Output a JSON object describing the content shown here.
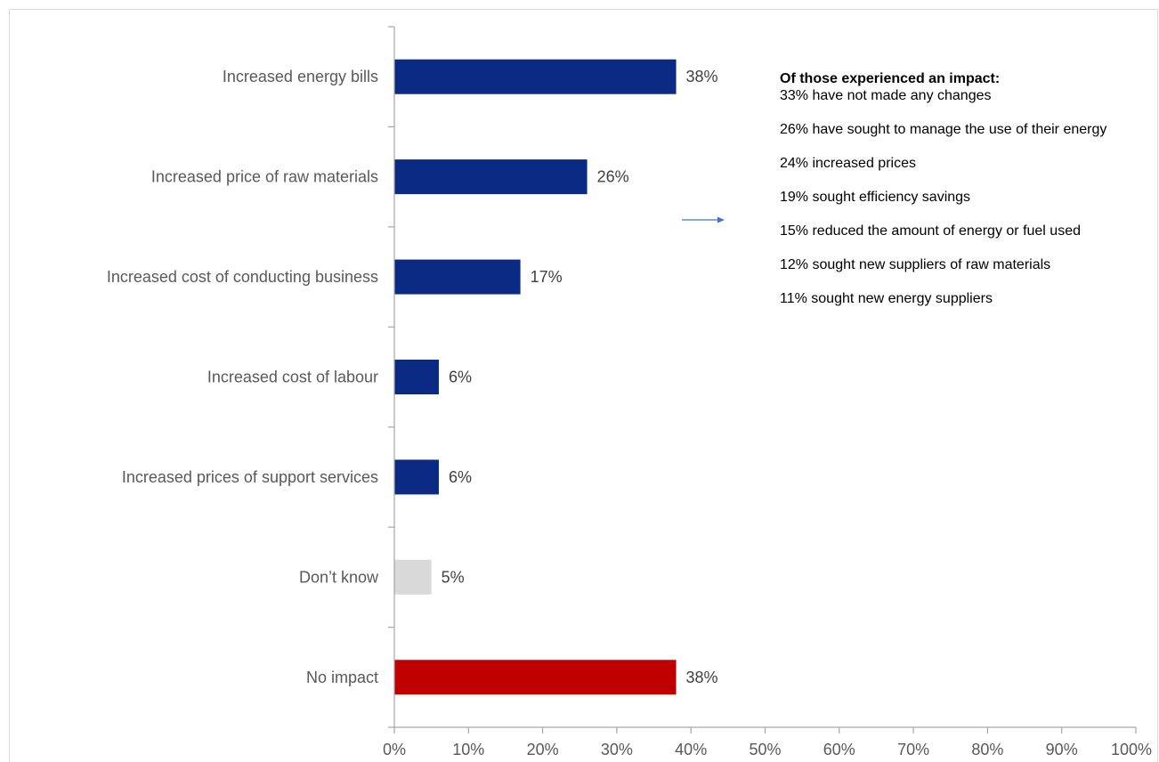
{
  "chart_data": {
    "type": "bar",
    "orientation": "horizontal",
    "categories": [
      "Increased energy bills",
      "Increased price of raw materials",
      "Increased cost of conducting business",
      "Increased cost of labour",
      "Increased prices of support services",
      "Don’t know",
      "No impact"
    ],
    "values": [
      38,
      26,
      17,
      6,
      6,
      5,
      38
    ],
    "value_labels": [
      "38%",
      "26%",
      "17%",
      "6%",
      "6%",
      "5%",
      "38%"
    ],
    "bar_colors": [
      "#0a2a84",
      "#0a2a84",
      "#0a2a84",
      "#0a2a84",
      "#0a2a84",
      "#d9d9d9",
      "#c00000"
    ],
    "xlim": [
      0,
      100
    ],
    "xticks": [
      0,
      10,
      20,
      30,
      40,
      50,
      60,
      70,
      80,
      90,
      100
    ],
    "xtick_labels": [
      "0%",
      "10%",
      "20%",
      "30%",
      "40%",
      "50%",
      "60%",
      "70%",
      "80%",
      "90%",
      "100%"
    ],
    "grid": false,
    "legend": "none"
  },
  "impact_panel": {
    "heading": "Of those experienced an impact:",
    "items": [
      "33% have not made any changes",
      "26% have sought to manage the use of their energy",
      "24% increased prices",
      "19% sought efficiency savings",
      "15% reduced the amount of energy or fuel used",
      "12% sought new suppliers of raw materials",
      "11% sought new energy suppliers"
    ]
  },
  "colors": {
    "axis": "#a6a6a6",
    "frame": "#d9d9d9",
    "category_text": "#595959",
    "value_text": "#404040",
    "arrow": "#4472c4"
  }
}
